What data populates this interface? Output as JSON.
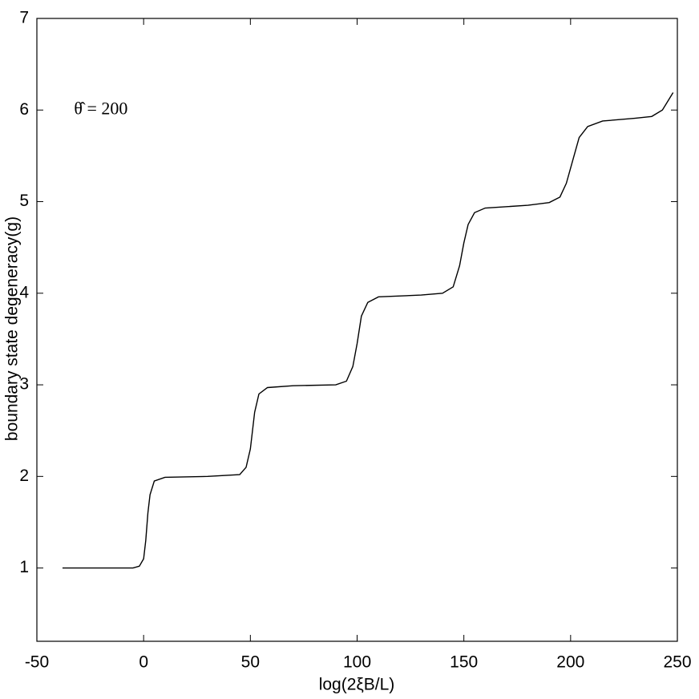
{
  "chart_data": {
    "type": "line",
    "x_label": "log(2ξB/L)",
    "y_label": "boundary state degeneracy(g)",
    "annotation": "θ̂ = 200",
    "annotation_at": [
      -20,
      6
    ],
    "x": [
      -38,
      -5,
      -2,
      0,
      1,
      2,
      3,
      5,
      10,
      30,
      45,
      48,
      50,
      51,
      52,
      54,
      58,
      70,
      90,
      95,
      98,
      100,
      102,
      105,
      110,
      130,
      140,
      145,
      148,
      150,
      152,
      155,
      160,
      180,
      190,
      195,
      198,
      201,
      204,
      208,
      215,
      230,
      238,
      243,
      248
    ],
    "values": [
      1.0,
      1.0,
      1.02,
      1.1,
      1.3,
      1.6,
      1.8,
      1.95,
      1.99,
      2.0,
      2.02,
      2.1,
      2.3,
      2.5,
      2.7,
      2.9,
      2.97,
      2.99,
      3.0,
      3.04,
      3.2,
      3.45,
      3.75,
      3.9,
      3.96,
      3.98,
      4.0,
      4.07,
      4.3,
      4.55,
      4.75,
      4.88,
      4.93,
      4.96,
      4.99,
      5.05,
      5.2,
      5.45,
      5.7,
      5.82,
      5.88,
      5.91,
      5.93,
      6.0,
      6.19
    ],
    "color": "#000000",
    "xlim": [
      -50,
      250
    ],
    "xticks": [
      -50,
      0,
      50,
      100,
      150,
      200,
      250
    ],
    "ylim": [
      0.2,
      7
    ],
    "yticks": [
      1,
      2,
      3,
      4,
      5,
      6,
      7
    ],
    "grid": false
  }
}
